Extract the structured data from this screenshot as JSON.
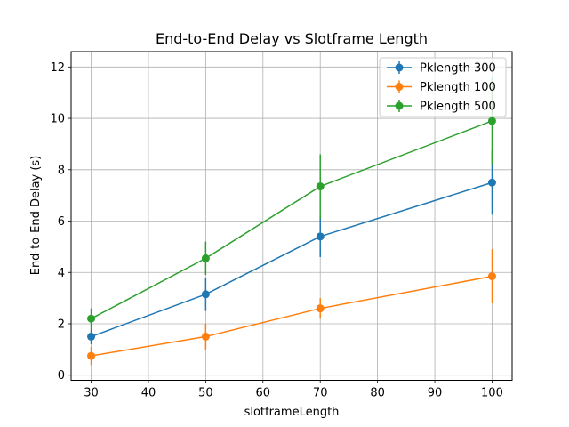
{
  "chart_data": {
    "type": "line",
    "title": "End-to-End Delay vs Slotframe Length",
    "xlabel": "slotframeLength",
    "ylabel": "End-to-End Delay (s)",
    "xlim": [
      26.5,
      103.5
    ],
    "ylim": [
      -0.2,
      12.6
    ],
    "xticks": [
      30,
      40,
      50,
      60,
      70,
      80,
      90,
      100
    ],
    "yticks": [
      0,
      2,
      4,
      6,
      8,
      10,
      12
    ],
    "grid": true,
    "legend_position": "top-right",
    "x": [
      30,
      50,
      70,
      100
    ],
    "series": [
      {
        "name": "Pklength 300",
        "color": "#1f77b4",
        "values": [
          1.5,
          3.15,
          5.4,
          7.5
        ],
        "error_low": [
          1.2,
          2.5,
          4.6,
          6.25
        ],
        "error_high": [
          1.8,
          3.8,
          6.2,
          8.75
        ]
      },
      {
        "name": "Pklength 100",
        "color": "#ff7f0e",
        "values": [
          0.75,
          1.5,
          2.6,
          3.85
        ],
        "error_low": [
          0.4,
          1.0,
          2.2,
          2.8
        ],
        "error_high": [
          1.1,
          2.0,
          3.0,
          4.9
        ]
      },
      {
        "name": "Pklength 500",
        "color": "#2ca02c",
        "values": [
          2.2,
          4.55,
          7.35,
          9.9
        ],
        "error_low": [
          1.8,
          3.9,
          6.1,
          8.2
        ],
        "error_high": [
          2.6,
          5.2,
          8.6,
          11.6
        ]
      }
    ]
  }
}
